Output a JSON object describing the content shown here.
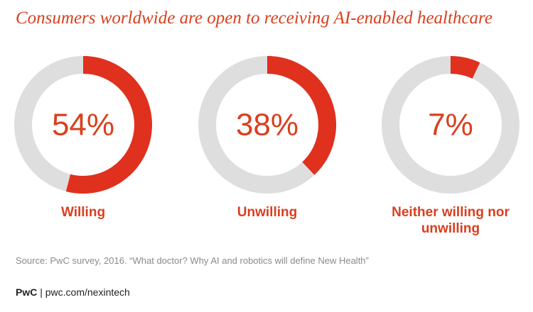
{
  "title": "Consumers worldwide are open to receiving AI-enabled healthcare",
  "chart_data": [
    {
      "type": "donut",
      "title": "Willing",
      "values": [
        54
      ],
      "value_labels": [
        "54%"
      ],
      "color": "#e0301e",
      "track_color": "#dedede"
    },
    {
      "type": "donut",
      "title": "Unwilling",
      "values": [
        38
      ],
      "value_labels": [
        "38%"
      ],
      "color": "#e0301e",
      "track_color": "#dedede"
    },
    {
      "type": "donut",
      "title": "Neither willing nor unwilling",
      "values": [
        7
      ],
      "value_labels": [
        "7%"
      ],
      "color": "#e0301e",
      "track_color": "#dedede"
    }
  ],
  "source": "Source: PwC survey, 2016. “What doctor? Why AI and robotics will define New Health”",
  "footer": {
    "brand": "PwC",
    "text": "| pwc.com/nexintech"
  }
}
